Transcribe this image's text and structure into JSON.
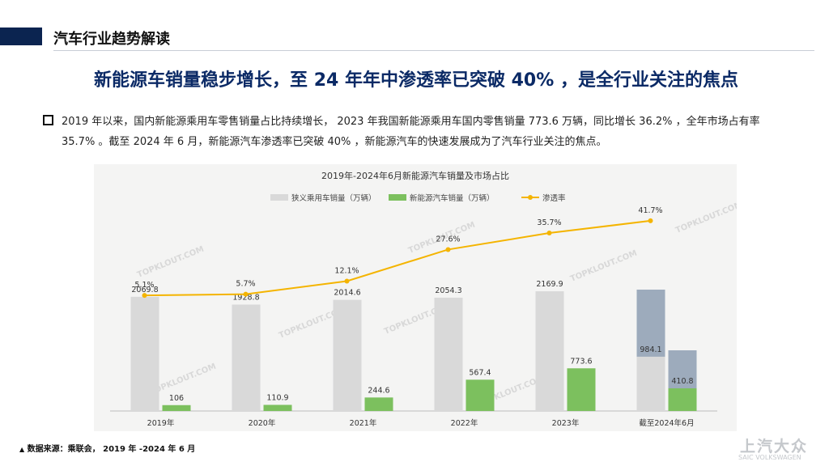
{
  "header": {
    "title": "汽车行业趋势解读"
  },
  "headline": "新能源车销量稳步增长，至 24 年年中渗透率已突破 40% ，是全行业关注的焦点",
  "body_text": "2019 年以来，国内新能源乘用车零售销量占比持续增长， 2023 年我国新能源乘用车国内零售销量 773.6 万辆，同比增长 36.2% ，全年市场占有率 35.7% 。截至 2024 年 6 月，新能源汽车渗透率已突破 40% ，新能源汽车的快速发展成为了汽车行业关注的焦点。",
  "source_mark": "▲",
  "source": "数据来源：乘联会， 2019 年 -2024 年 6 月",
  "logo": {
    "cn": "上汽大众",
    "en": "SAIC VOLKSWAGEN"
  },
  "watermark_text": "TOPKLOUT.COM",
  "chart_data": {
    "type": "bar",
    "title": "2019年-2024年6月新能源汽车销量及市场占比",
    "categories": [
      "2019年",
      "2020年",
      "2021年",
      "2022年",
      "2023年",
      "截至2024年6月"
    ],
    "series": [
      {
        "name": "狭义乘用车销量（万辆）",
        "type": "bar",
        "color": "#d9d9d9",
        "values": [
          2069.8,
          1928.8,
          2014.6,
          2054.3,
          2169.9,
          984.1
        ],
        "labels": [
          "2069.8",
          "1928.8",
          "2014.6",
          "2054.3",
          "2169.9",
          "984.1"
        ]
      },
      {
        "name": "新能源汽车销量（万辆）",
        "type": "bar",
        "color": "#7cc05e",
        "values": [
          106,
          110.9,
          244.6,
          567.4,
          773.6,
          410.8
        ],
        "labels": [
          "106",
          "110.9",
          "244.6",
          "567.4",
          "773.6",
          "410.8"
        ]
      },
      {
        "name": "渗透率",
        "type": "line",
        "color": "#f4b400",
        "values": [
          5.1,
          5.7,
          12.1,
          27.6,
          35.7,
          41.7
        ],
        "labels": [
          "5.1%",
          "5.7%",
          "12.1%",
          "27.6%",
          "35.7%",
          "41.7%"
        ]
      }
    ],
    "ylim": [
      0,
      2200
    ],
    "y2lim": [
      0,
      100
    ],
    "xlabel": "",
    "ylabel": "",
    "legend_position": "top-center",
    "grid": false,
    "colors": {
      "highlight": "#98a7b8"
    }
  }
}
